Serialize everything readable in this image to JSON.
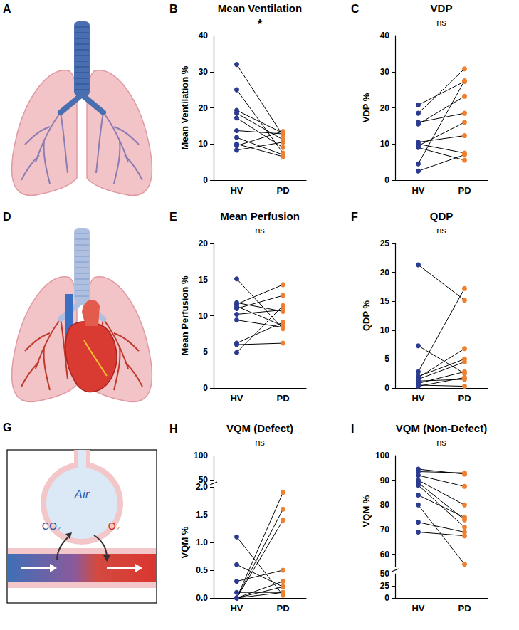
{
  "diagrams": [
    {
      "letter": "A"
    },
    {
      "letter": "D"
    },
    {
      "letter": "G",
      "texts": [
        "Air",
        "CO₂",
        "O₂"
      ]
    }
  ],
  "chart_data": [
    {
      "letter": "B",
      "type": "paired_scatter",
      "title": "Mean Ventilation",
      "significance": "*",
      "y_label": "Mean Ventilation %",
      "categories": [
        "HV",
        "PD"
      ],
      "colors": [
        "#2c3a8f",
        "#f08030"
      ],
      "values": [
        [
          32,
          12.3
        ],
        [
          25,
          7.5
        ],
        [
          19.3,
          13
        ],
        [
          18.5,
          11.2
        ],
        [
          17.2,
          9
        ],
        [
          13.7,
          12.8
        ],
        [
          11.8,
          7
        ],
        [
          10,
          6.5
        ],
        [
          9.5,
          13.5
        ],
        [
          8.3,
          10.5
        ]
      ],
      "ylim": [
        0,
        40
      ],
      "yticks": [
        0,
        10,
        20,
        30,
        40
      ],
      "grid": false
    },
    {
      "letter": "C",
      "type": "paired_scatter",
      "title": "VDP",
      "significance": "ns",
      "y_label": "VDP %",
      "categories": [
        "HV",
        "PD"
      ],
      "colors": [
        "#2c3a8f",
        "#f08030"
      ],
      "values": [
        [
          20.8,
          27.3
        ],
        [
          18.5,
          30.8
        ],
        [
          16,
          18.5
        ],
        [
          15.5,
          23.2
        ],
        [
          10.5,
          12.3
        ],
        [
          10,
          7.5
        ],
        [
          9.5,
          16
        ],
        [
          9,
          5.5
        ],
        [
          4.5,
          27.5
        ],
        [
          2.5,
          7
        ]
      ],
      "ylim": [
        0,
        40
      ],
      "yticks": [
        0,
        10,
        20,
        30,
        40
      ],
      "grid": false
    },
    {
      "letter": "E",
      "type": "paired_scatter",
      "title": "Mean Perfusion",
      "significance": "ns",
      "y_label": "Mean Perfusion %",
      "categories": [
        "HV",
        "PD"
      ],
      "colors": [
        "#2c3a8f",
        "#f08030"
      ],
      "values": [
        [
          15.1,
          8.2
        ],
        [
          11.8,
          10.6
        ],
        [
          11.6,
          14.3
        ],
        [
          11.3,
          8.6
        ],
        [
          11,
          12.8
        ],
        [
          10.2,
          10.8
        ],
        [
          9.4,
          8.4
        ],
        [
          6.2,
          9.1
        ],
        [
          6,
          6.2
        ],
        [
          4.9,
          11.4
        ]
      ],
      "ylim": [
        0,
        20
      ],
      "yticks": [
        0,
        5,
        10,
        15,
        20
      ],
      "grid": false
    },
    {
      "letter": "F",
      "type": "paired_scatter",
      "title": "QDP",
      "significance": "ns",
      "y_label": "QDP %",
      "categories": [
        "HV",
        "PD"
      ],
      "colors": [
        "#2c3a8f",
        "#f08030"
      ],
      "values": [
        [
          21.3,
          15.2
        ],
        [
          7.3,
          2.5
        ],
        [
          2.8,
          17.2
        ],
        [
          2,
          5
        ],
        [
          1.8,
          6.8
        ],
        [
          1.5,
          4.5
        ],
        [
          1.2,
          1.5
        ],
        [
          0.8,
          2.8
        ],
        [
          0.5,
          0.3
        ],
        [
          0.3,
          1.8
        ]
      ],
      "ylim": [
        0,
        25
      ],
      "yticks": [
        0,
        5,
        10,
        15,
        20,
        25
      ],
      "grid": false
    },
    {
      "letter": "H",
      "type": "paired_scatter",
      "title": "VQM (Defect)",
      "significance": "ns",
      "y_label": "VQM %",
      "categories": [
        "HV",
        "PD"
      ],
      "colors": [
        "#2c3a8f",
        "#f08030"
      ],
      "values": [
        [
          1.1,
          0.05
        ],
        [
          0.6,
          0.2
        ],
        [
          0.3,
          0.5
        ],
        [
          0.1,
          0.1
        ],
        [
          0,
          1.9
        ],
        [
          0,
          1.6
        ],
        [
          0,
          1.4
        ],
        [
          0,
          0.3
        ],
        [
          0,
          0.2
        ],
        [
          0,
          0.1
        ]
      ],
      "ylim": [
        0,
        2
      ],
      "yticks": [
        {
          "value": 0,
          "label": "0.0"
        },
        {
          "value": 0.5,
          "label": "0.5"
        },
        {
          "value": 1,
          "label": "1.0"
        },
        {
          "value": 1.5,
          "label": "1.5"
        },
        {
          "value": 2,
          "label": "2.0"
        }
      ],
      "break_ylim": [
        50,
        100
      ],
      "break_yticks": [
        50,
        100
      ],
      "grid": false
    },
    {
      "letter": "I",
      "type": "paired_scatter",
      "title": "VQM (Non-Defect)",
      "significance": "ns",
      "y_label": "VQM %",
      "categories": [
        "HV",
        "PD"
      ],
      "colors": [
        "#2c3a8f",
        "#f08030"
      ],
      "values": [
        [
          94.5,
          92.5
        ],
        [
          93.5,
          93
        ],
        [
          92,
          87.5
        ],
        [
          90,
          80
        ],
        [
          89,
          74
        ],
        [
          88,
          71
        ],
        [
          84,
          75
        ],
        [
          80,
          56
        ],
        [
          73,
          69
        ],
        [
          69,
          67.5
        ]
      ],
      "ylim": [
        55,
        100
      ],
      "yticks": [
        60,
        70,
        80,
        90,
        100
      ],
      "break_ylim": [
        0,
        50
      ],
      "break_yticks": [
        0,
        25,
        50
      ],
      "grid": false
    }
  ]
}
